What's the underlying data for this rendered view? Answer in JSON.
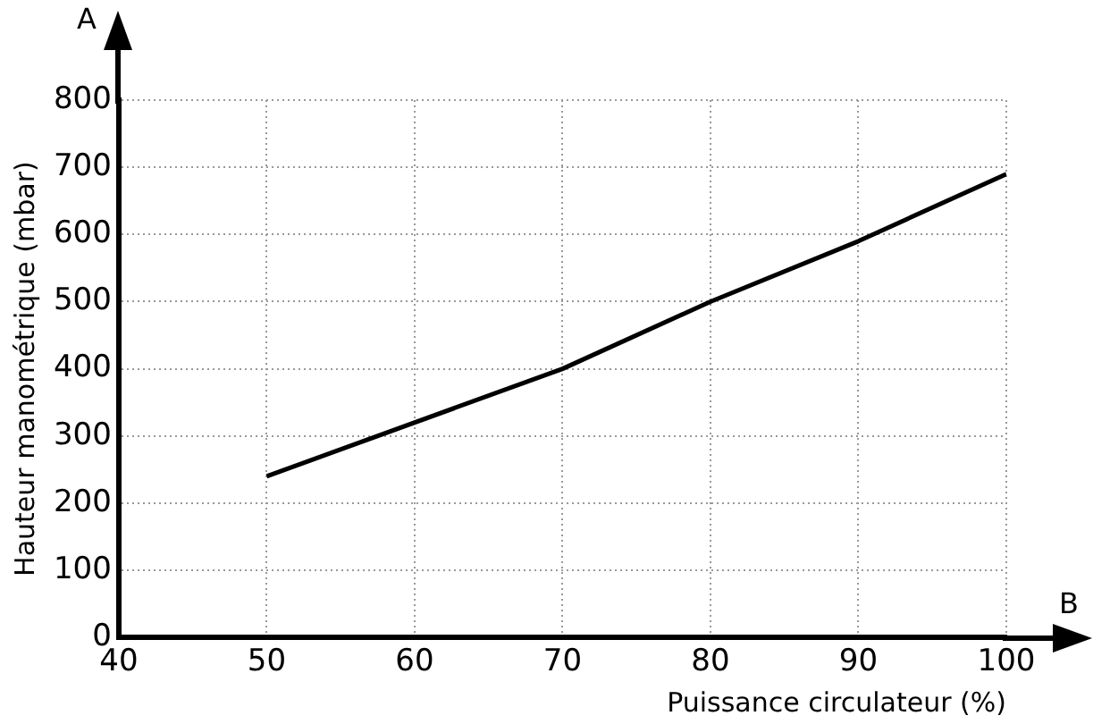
{
  "chart_data": {
    "type": "line",
    "xlabel": "Puissance circulateur (%)",
    "ylabel": "Hauteur manométrique (mbar)",
    "annotations": [
      "A",
      "B"
    ],
    "x": [
      50,
      70,
      80,
      90,
      100
    ],
    "series": [
      {
        "color": "#000000",
        "values": [
          240,
          400,
          500,
          590,
          690
        ]
      }
    ],
    "xlim": [
      40,
      100
    ],
    "xticks": [
      40,
      50,
      60,
      70,
      80,
      90,
      100
    ],
    "ylim": [
      0,
      800
    ],
    "yticks": [
      0,
      100,
      200,
      300,
      400,
      500,
      600,
      700,
      800
    ],
    "grid": true,
    "legend": false,
    "marker": "none",
    "line_style": "solid"
  }
}
